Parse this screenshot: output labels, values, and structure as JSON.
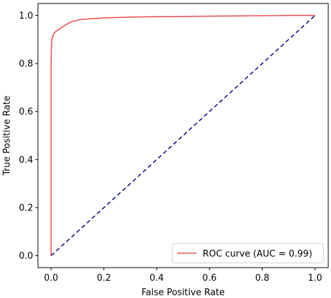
{
  "chart_data": {
    "type": "line",
    "xlabel": "False Positive Rate",
    "ylabel": "True Positive Rate",
    "xlim": [
      -0.05,
      1.05
    ],
    "ylim": [
      -0.05,
      1.05
    ],
    "xticks": [
      "0.0",
      "0.2",
      "0.4",
      "0.6",
      "0.8",
      "1.0"
    ],
    "yticks": [
      "0.0",
      "0.2",
      "0.4",
      "0.6",
      "0.8",
      "1.0"
    ],
    "grid": false,
    "legend_position": "lower-right",
    "series": [
      {
        "name": "ROC curve (AUC = 0.99)",
        "color": "#f05050",
        "style": "solid",
        "x": [
          0.0,
          0.0,
          0.001,
          0.002,
          0.004,
          0.007,
          0.01,
          0.015,
          0.02,
          0.03,
          0.04,
          0.05,
          0.06,
          0.07,
          0.08,
          0.1,
          0.12,
          0.15,
          0.2,
          0.3,
          0.4,
          0.6,
          0.8,
          0.9,
          1.0
        ],
        "y": [
          0.0,
          0.8,
          0.86,
          0.89,
          0.905,
          0.915,
          0.925,
          0.93,
          0.935,
          0.942,
          0.95,
          0.958,
          0.964,
          0.97,
          0.975,
          0.98,
          0.984,
          0.986,
          0.99,
          0.993,
          0.995,
          0.997,
          0.999,
          1.0,
          1.0
        ]
      },
      {
        "name": "",
        "color": "#000080",
        "style": "dashed",
        "x": [
          0.0,
          1.0
        ],
        "y": [
          0.0,
          1.0
        ]
      }
    ]
  }
}
